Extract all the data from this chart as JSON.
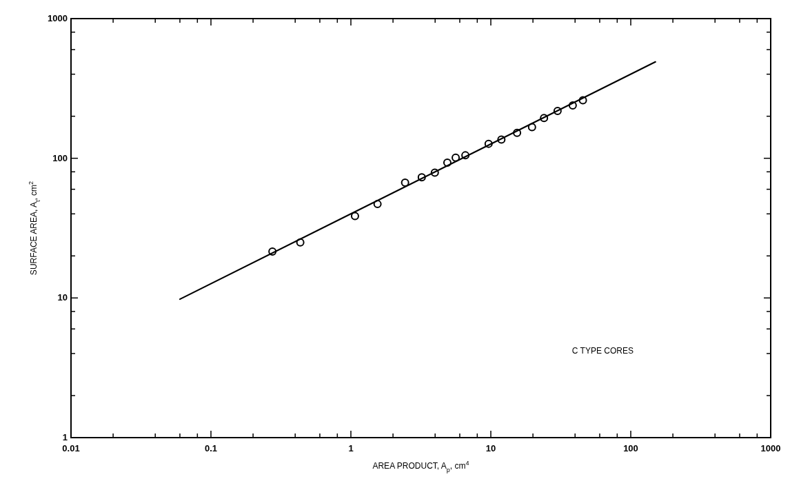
{
  "chart_data": {
    "type": "scatter",
    "xlabel": "AREA PRODUCT, A$_{p}$, cm$^{4}$",
    "ylabel": "SURFACE AREA, A$_{t}$, cm$^{2}$",
    "log": "xy",
    "grid": false,
    "marker": "circle",
    "xlim": [
      0.01,
      1000
    ],
    "ylim": [
      1,
      1000
    ],
    "xticks": [
      0.01,
      {
        "value": 0.02,
        "label": null
      },
      {
        "value": 0.04,
        "label": null
      },
      {
        "value": 0.06,
        "label": null
      },
      {
        "value": 0.08,
        "label": null
      },
      0.1,
      {
        "value": 0.2,
        "label": null
      },
      {
        "value": 0.4,
        "label": null
      },
      {
        "value": 0.6,
        "label": null
      },
      {
        "value": 0.8,
        "label": null
      },
      1,
      {
        "value": 2,
        "label": null
      },
      {
        "value": 4,
        "label": null
      },
      {
        "value": 6,
        "label": null
      },
      {
        "value": 8,
        "label": null
      },
      10,
      {
        "value": 20,
        "label": null
      },
      {
        "value": 40,
        "label": null
      },
      {
        "value": 60,
        "label": null
      },
      {
        "value": 80,
        "label": null
      },
      100,
      {
        "value": 200,
        "label": null
      },
      {
        "value": 400,
        "label": null
      },
      {
        "value": 600,
        "label": null
      },
      {
        "value": 800,
        "label": null
      },
      1000
    ],
    "yticks": [
      1,
      {
        "value": 2,
        "label": null
      },
      {
        "value": 4,
        "label": null
      },
      {
        "value": 6,
        "label": null
      },
      {
        "value": 8,
        "label": null
      },
      10,
      {
        "value": 20,
        "label": null
      },
      {
        "value": 40,
        "label": null
      },
      {
        "value": 60,
        "label": null
      },
      {
        "value": 80,
        "label": null
      },
      100,
      {
        "value": 200,
        "label": null
      },
      {
        "value": 400,
        "label": null
      },
      {
        "value": 600,
        "label": null
      },
      {
        "value": 800,
        "label": null
      },
      1000
    ],
    "annotations": [
      "C TYPE CORES"
    ],
    "series": [
      {
        "color": "#000000",
        "x": [
          0.275,
          0.435,
          1.07,
          1.55,
          2.44,
          3.21,
          3.98,
          4.89,
          5.61,
          6.58,
          9.64,
          11.9,
          15.4,
          19.7,
          24.0,
          30.0,
          38.5,
          45.5
        ],
        "values": [
          21.5,
          25,
          38.6,
          47,
          67,
          73,
          79,
          93,
          101,
          105,
          127,
          136,
          152,
          167,
          194,
          218,
          239,
          260
        ]
      },
      {
        "type": "line",
        "color": "#000000",
        "marker": "none",
        "line_style": "solid",
        "x": [
          0.06,
          150
        ],
        "values": [
          9.8,
          490
        ]
      }
    ]
  }
}
